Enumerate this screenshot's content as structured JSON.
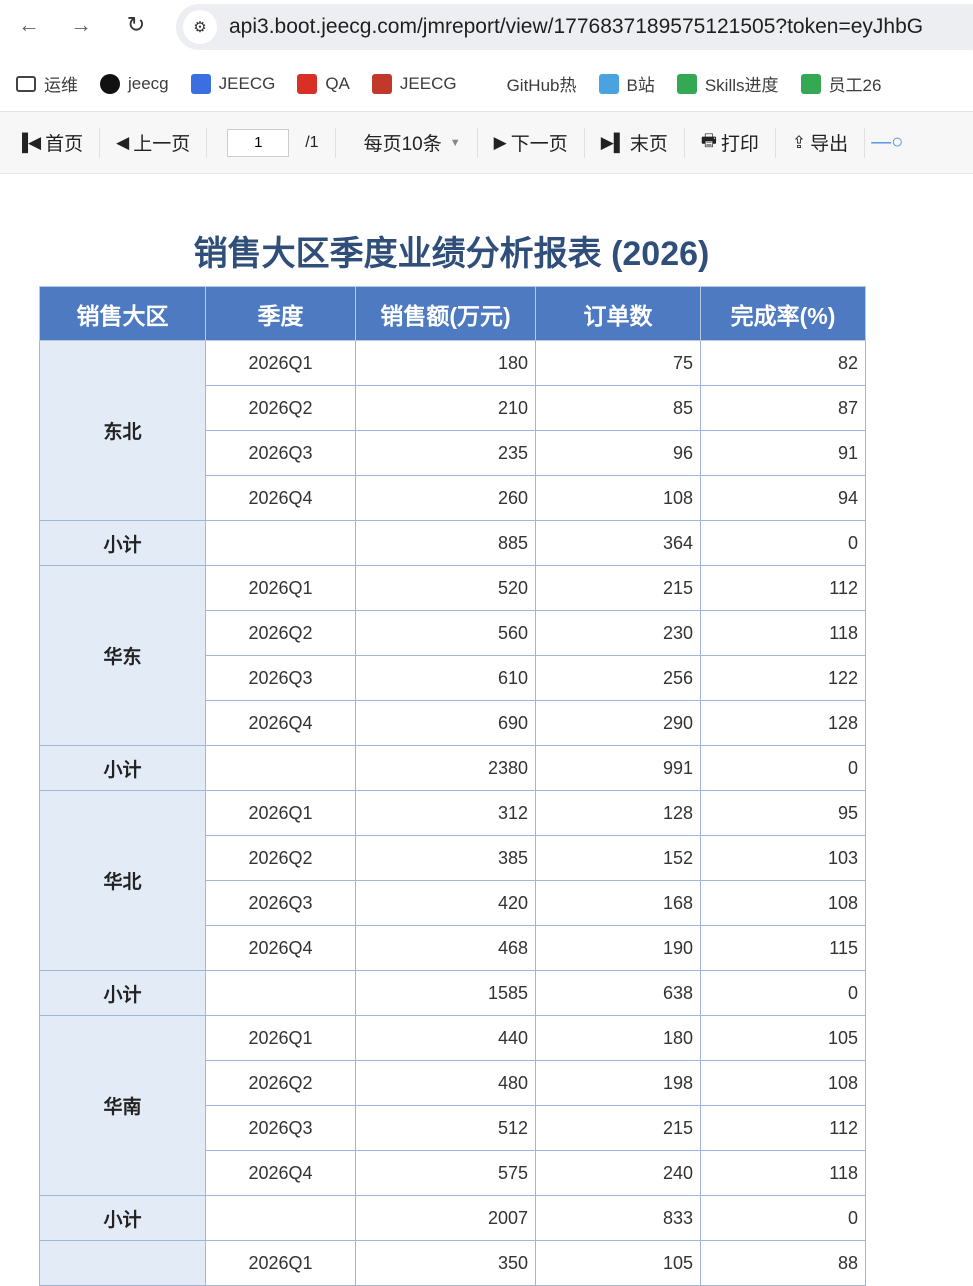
{
  "browser": {
    "url": "api3.boot.jeecg.com/jmreport/view/1776837189575121505?token=eyJhbG"
  },
  "bookmarks": [
    {
      "label": "运维",
      "icon": "folder-icon",
      "color": "#444"
    },
    {
      "label": "jeecg",
      "icon": "github-icon",
      "color": "#111"
    },
    {
      "label": "JEECG",
      "icon": "jeecg-icon",
      "color": "#3b6fe0"
    },
    {
      "label": "QA",
      "icon": "qa-icon",
      "color": "#d93025"
    },
    {
      "label": "JEECG",
      "icon": "jeecg-99-icon",
      "color": "#c0392b"
    },
    {
      "label": "GitHub热",
      "icon": "blank-icon",
      "color": "#fff"
    },
    {
      "label": "B站",
      "icon": "bilibili-icon",
      "color": "#4aa3df"
    },
    {
      "label": "Skills进度",
      "icon": "sheet-icon",
      "color": "#34a853"
    },
    {
      "label": "员工26",
      "icon": "sheet-icon",
      "color": "#34a853"
    }
  ],
  "toolbar": {
    "first": "首页",
    "prev": "上一页",
    "page": "1",
    "total": "/1",
    "per_page": "每页10条",
    "next": "下一页",
    "last": "末页",
    "print": "打印",
    "export": "导出"
  },
  "report": {
    "title": "销售大区季度业绩分析报表 (2026)",
    "headers": [
      "销售大区",
      "季度",
      "销售额(万元)",
      "订单数",
      "完成率(%)"
    ],
    "subtotal_label": "小计",
    "regions": [
      {
        "name": "东北",
        "rows": [
          [
            "2026Q1",
            "180",
            "75",
            "82"
          ],
          [
            "2026Q2",
            "210",
            "85",
            "87"
          ],
          [
            "2026Q3",
            "235",
            "96",
            "91"
          ],
          [
            "2026Q4",
            "260",
            "108",
            "94"
          ]
        ],
        "subtotal": [
          "",
          "885",
          "364",
          "0"
        ]
      },
      {
        "name": "华东",
        "rows": [
          [
            "2026Q1",
            "520",
            "215",
            "112"
          ],
          [
            "2026Q2",
            "560",
            "230",
            "118"
          ],
          [
            "2026Q3",
            "610",
            "256",
            "122"
          ],
          [
            "2026Q4",
            "690",
            "290",
            "128"
          ]
        ],
        "subtotal": [
          "",
          "2380",
          "991",
          "0"
        ]
      },
      {
        "name": "华北",
        "rows": [
          [
            "2026Q1",
            "312",
            "128",
            "95"
          ],
          [
            "2026Q2",
            "385",
            "152",
            "103"
          ],
          [
            "2026Q3",
            "420",
            "168",
            "108"
          ],
          [
            "2026Q4",
            "468",
            "190",
            "115"
          ]
        ],
        "subtotal": [
          "",
          "1585",
          "638",
          "0"
        ]
      },
      {
        "name": "华南",
        "rows": [
          [
            "2026Q1",
            "440",
            "180",
            "105"
          ],
          [
            "2026Q2",
            "480",
            "198",
            "108"
          ],
          [
            "2026Q3",
            "512",
            "215",
            "112"
          ],
          [
            "2026Q4",
            "575",
            "240",
            "118"
          ]
        ],
        "subtotal": [
          "",
          "2007",
          "833",
          "0"
        ]
      },
      {
        "name": "",
        "rows": [
          [
            "2026Q1",
            "350",
            "105",
            "88"
          ]
        ]
      }
    ]
  }
}
